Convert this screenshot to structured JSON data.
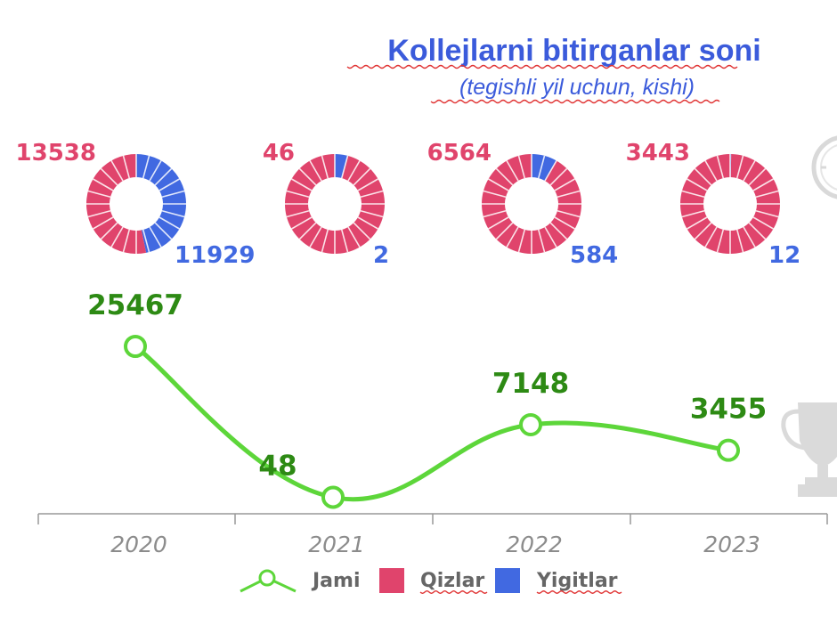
{
  "chart_data": {
    "type": "line",
    "title": "Kollejlarni bitirganlar soni",
    "subtitle": "(tegishli yil uchun, kishi)",
    "categories": [
      "2020",
      "2021",
      "2022",
      "2023"
    ],
    "series": [
      {
        "name": "Jami",
        "values": [
          25467,
          48,
          7148,
          3455
        ],
        "color": "#5dd63a"
      },
      {
        "name": "Qizlar",
        "values": [
          13538,
          46,
          6564,
          3443
        ],
        "color": "#e0446c"
      },
      {
        "name": "Yigitlar",
        "values": [
          11929,
          2,
          584,
          12
        ],
        "color": "#4169e1"
      }
    ],
    "donuts": [
      {
        "category": "2020",
        "qizlar": 13538,
        "yigitlar": 11929,
        "qizlar_label": "13538",
        "yigitlar_label": "11929"
      },
      {
        "category": "2021",
        "qizlar": 46,
        "yigitlar": 2,
        "qizlar_label": "46",
        "yigitlar_label": "2"
      },
      {
        "category": "2022",
        "qizlar": 6564,
        "yigitlar": 584,
        "qizlar_label": "6564",
        "yigitlar_label": "584"
      },
      {
        "category": "2023",
        "qizlar": 3443,
        "yigitlar": 12,
        "qizlar_label": "3443",
        "yigitlar_label": "12"
      }
    ],
    "point_labels": [
      "25467",
      "48",
      "7148",
      "3455"
    ],
    "legend": {
      "position": "bottom-center",
      "items": [
        "Jami",
        "Qizlar",
        "Yigitlar"
      ]
    },
    "grid": false,
    "colors": {
      "jami": "#5dd63a",
      "jami_label": "#2d8a14",
      "qizlar": "#e0446c",
      "yigitlar": "#4169e1",
      "title": "#3b5bdb",
      "axis": "#999999",
      "icon": "#d9d9d9"
    },
    "icons": [
      "stopwatch-icon",
      "trophy-icon"
    ]
  }
}
